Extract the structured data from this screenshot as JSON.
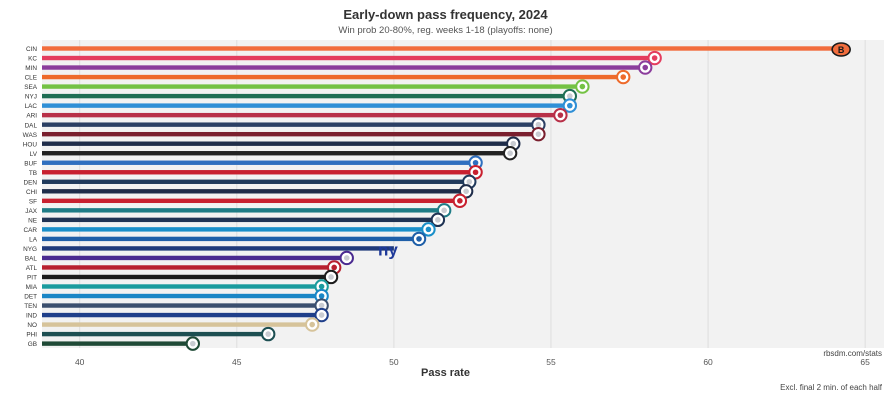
{
  "chart_data": {
    "type": "bar",
    "orientation": "horizontal",
    "title": "Early-down pass frequency, 2024",
    "subtitle": "Win prob 20-80%, reg. weeks 1-18 (playoffs: none)",
    "xlabel": "Pass rate",
    "ylabel": "",
    "xlim": [
      38.8,
      65.6
    ],
    "xticks": [
      40,
      45,
      50,
      55,
      60,
      65
    ],
    "grid": true,
    "legend": "none",
    "source": "rbsdm.com/stats",
    "note": "Excl. final 2 min. of each half",
    "categories": [
      "CIN",
      "KC",
      "MIN",
      "CLE",
      "SEA",
      "NYJ",
      "LAC",
      "ARI",
      "DAL",
      "WAS",
      "HOU",
      "LV",
      "BUF",
      "TB",
      "DEN",
      "CHI",
      "SF",
      "JAX",
      "NE",
      "CAR",
      "LA",
      "NYG",
      "BAL",
      "ATL",
      "PIT",
      "MIA",
      "DET",
      "TEN",
      "IND",
      "NO",
      "PHI",
      "GB"
    ],
    "values": [
      64.3,
      58.3,
      58.0,
      57.3,
      56.0,
      55.6,
      55.6,
      55.3,
      54.6,
      54.6,
      53.8,
      53.7,
      52.6,
      52.6,
      52.4,
      52.3,
      52.1,
      51.6,
      51.4,
      51.1,
      50.8,
      50.0,
      48.5,
      48.1,
      48.0,
      47.7,
      47.7,
      47.7,
      47.7,
      47.4,
      46.0,
      43.6
    ],
    "colors": [
      "#f26d3d",
      "#e43d5e",
      "#8b3d9c",
      "#ee6a2b",
      "#74c244",
      "#1f6e54",
      "#2f8fd6",
      "#b83048",
      "#2b3f63",
      "#7a1f2e",
      "#1f2d4a",
      "#222222",
      "#2f6fbf",
      "#c8202f",
      "#203a5c",
      "#1f2d4a",
      "#c8202f",
      "#1e7c86",
      "#1f3354",
      "#1a8fc9",
      "#1f5fa8",
      "#1f3a7a",
      "#4a2a90",
      "#b8202f",
      "#1c1c1c",
      "#1a9b9e",
      "#1a86c6",
      "#3b4f6e",
      "#1f3f8a",
      "#d6c39a",
      "#1d4f52",
      "#1f4a36"
    ],
    "logo_marks": [
      "bengals-logo",
      "chiefs-logo",
      "vikings-logo",
      "browns-logo",
      "seahawks-logo",
      "jets-logo",
      "chargers-logo",
      "cardinals-logo",
      "cowboys-logo",
      "commanders-logo",
      "texans-logo",
      "raiders-logo",
      "bills-logo",
      "buccaneers-logo",
      "broncos-logo",
      "bears-logo",
      "49ers-logo",
      "jaguars-logo",
      "patriots-logo",
      "panthers-logo",
      "rams-logo",
      "giants-logo",
      "ravens-logo",
      "falcons-logo",
      "steelers-logo",
      "dolphins-logo",
      "lions-logo",
      "titans-logo",
      "colts-logo",
      "saints-logo",
      "eagles-logo",
      "packers-logo"
    ],
    "logo_text": {
      "CIN": "B",
      "NYG": "ny"
    }
  }
}
